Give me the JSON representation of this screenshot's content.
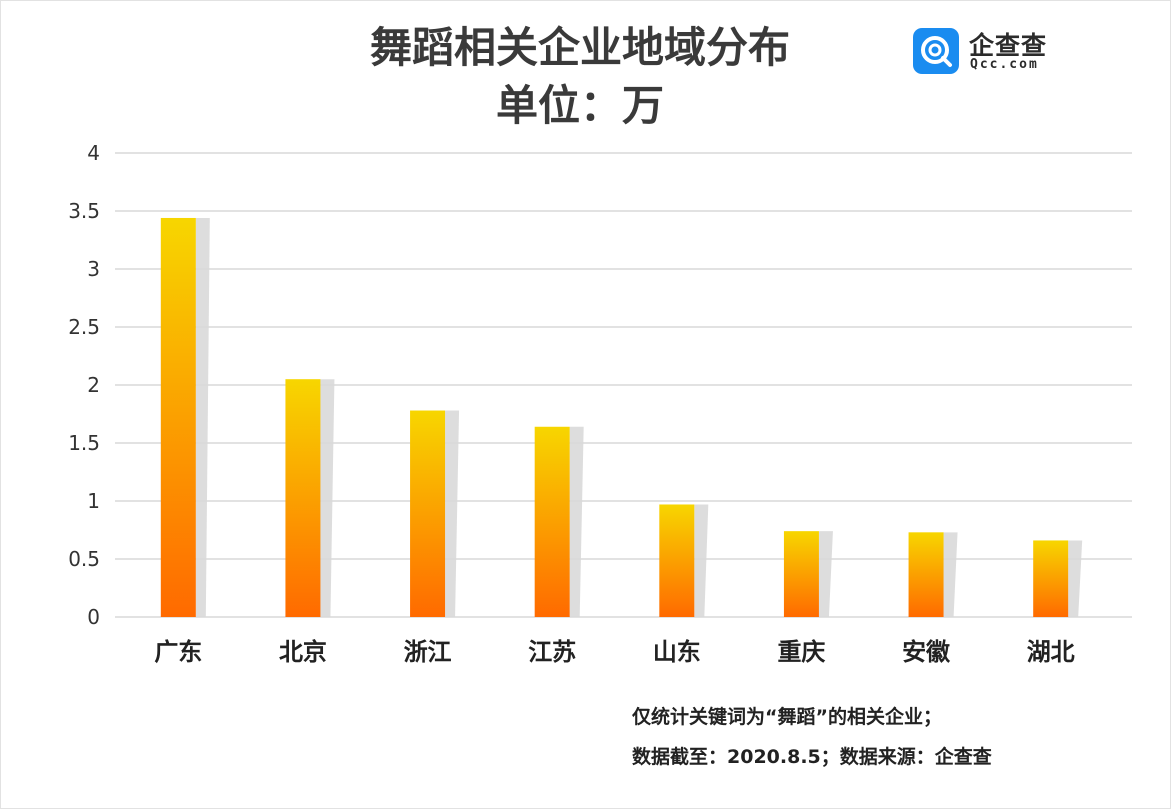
{
  "chart_data": {
    "type": "bar",
    "title": "舞蹈相关企业地域分布",
    "subtitle": "单位：万",
    "categories": [
      "广东",
      "北京",
      "浙江",
      "江苏",
      "山东",
      "重庆",
      "安徽",
      "湖北"
    ],
    "values": [
      3.44,
      2.05,
      1.78,
      1.64,
      0.97,
      0.74,
      0.73,
      0.66
    ],
    "ylim": [
      0,
      4
    ],
    "yticks": [
      "0",
      "0.5",
      "1",
      "1.5",
      "2",
      "2.5",
      "3",
      "3.5",
      "4"
    ],
    "grid": true,
    "colors": {
      "bar_top": "#f7d600",
      "bar_bottom": "#ff6a00",
      "shadow": "#d9d9d9",
      "grid": "#d8d8d8"
    }
  },
  "logo": {
    "name": "企查查",
    "domain": "Qcc.com",
    "color": "#1a8cf0"
  },
  "notes": [
    "仅统计关键词为“舞蹈”的相关企业；",
    "数据截至：2020.8.5；数据来源：企查查"
  ]
}
